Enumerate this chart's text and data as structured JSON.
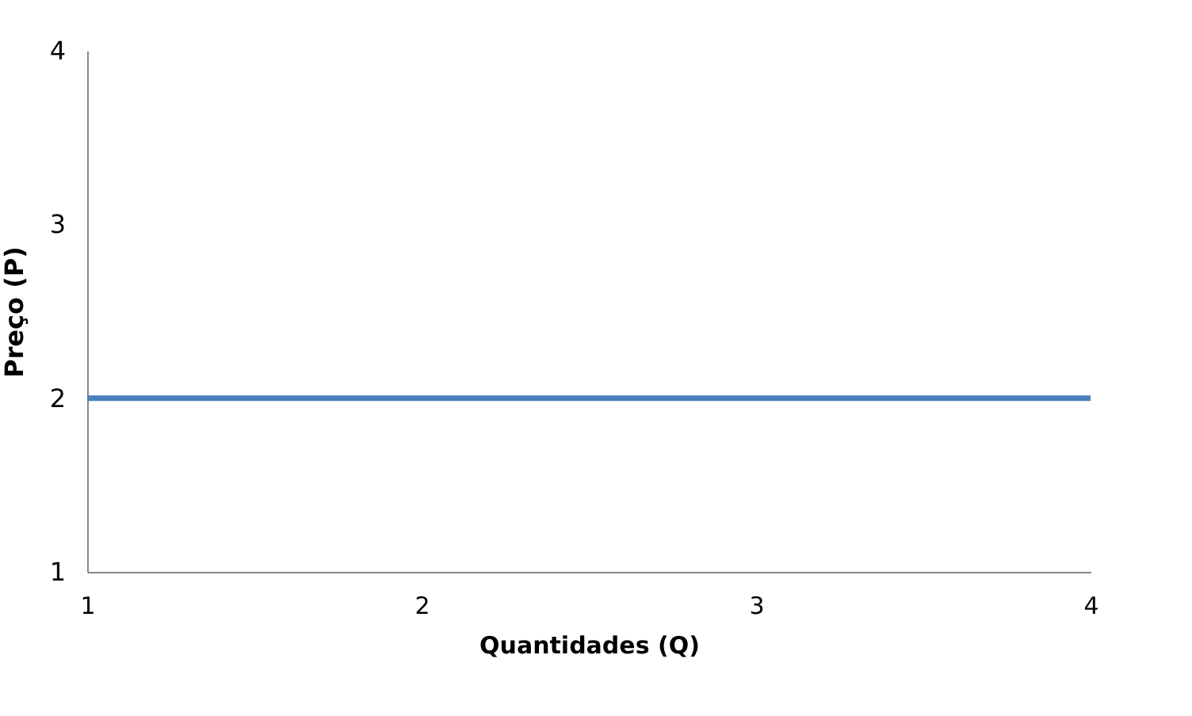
{
  "chart_data": {
    "type": "line",
    "xlabel": "Quantidades (Q)",
    "ylabel": "Preço (P)",
    "x": [
      1,
      4
    ],
    "series": [
      {
        "color": "#4a7ebb",
        "values": [
          2,
          2
        ]
      }
    ],
    "xlim": [
      1,
      4
    ],
    "xticks": [
      1,
      2,
      3,
      4
    ],
    "ylim": [
      1,
      4
    ],
    "yticks": [
      1,
      2,
      3,
      4
    ],
    "grid": false,
    "legend": false,
    "marker": "none",
    "line_style": "solid"
  }
}
